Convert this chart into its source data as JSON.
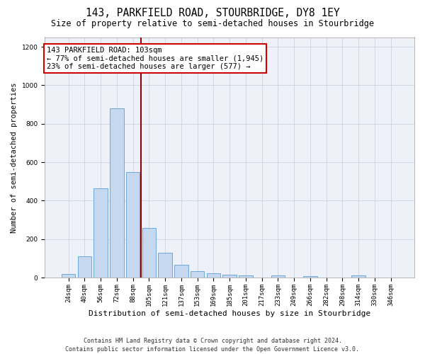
{
  "title_line1": "143, PARKFIELD ROAD, STOURBRIDGE, DY8 1EY",
  "title_line2": "Size of property relative to semi-detached houses in Stourbridge",
  "xlabel": "Distribution of semi-detached houses by size in Stourbridge",
  "ylabel": "Number of semi-detached properties",
  "categories": [
    "24sqm",
    "40sqm",
    "56sqm",
    "72sqm",
    "88sqm",
    "105sqm",
    "121sqm",
    "137sqm",
    "153sqm",
    "169sqm",
    "185sqm",
    "201sqm",
    "217sqm",
    "233sqm",
    "249sqm",
    "266sqm",
    "282sqm",
    "298sqm",
    "314sqm",
    "330sqm",
    "346sqm"
  ],
  "values": [
    18,
    110,
    465,
    880,
    550,
    258,
    128,
    65,
    32,
    22,
    15,
    10,
    0,
    10,
    0,
    7,
    0,
    0,
    10,
    0,
    0
  ],
  "bar_color": "#c5d8f0",
  "bar_edge_color": "#5a9fd4",
  "vline_x": 4.5,
  "vline_color": "#8b0000",
  "annotation_text": "143 PARKFIELD ROAD: 103sqm\n← 77% of semi-detached houses are smaller (1,945)\n23% of semi-detached houses are larger (577) →",
  "annotation_box_color": "#ffffff",
  "annotation_box_edge": "#cc0000",
  "ylim": [
    0,
    1250
  ],
  "yticks": [
    0,
    200,
    400,
    600,
    800,
    1000,
    1200
  ],
  "grid_color": "#d0d8e8",
  "background_color": "#eef2f8",
  "footer_line1": "Contains HM Land Registry data © Crown copyright and database right 2024.",
  "footer_line2": "Contains public sector information licensed under the Open Government Licence v3.0.",
  "title_fontsize": 10.5,
  "subtitle_fontsize": 8.5,
  "xlabel_fontsize": 8,
  "ylabel_fontsize": 7.5,
  "tick_fontsize": 6.5,
  "annotation_fontsize": 7.5,
  "footer_fontsize": 6.0
}
